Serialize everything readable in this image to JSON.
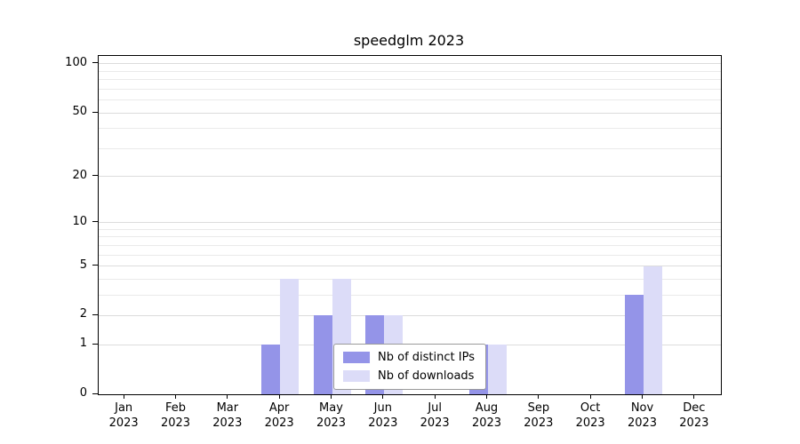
{
  "title": "speedglm 2023",
  "axes": {
    "x_months": [
      "Jan",
      "Feb",
      "Mar",
      "Apr",
      "May",
      "Jun",
      "Jul",
      "Aug",
      "Sep",
      "Oct",
      "Nov",
      "Dec"
    ],
    "x_year": "2023",
    "y_tick_values": [
      0,
      1,
      2,
      5,
      10,
      20,
      50,
      100
    ]
  },
  "legend": {
    "items": [
      {
        "label": "Nb of distinct IPs",
        "color": "#9494e8"
      },
      {
        "label": "Nb of downloads",
        "color": "#dcdcf8"
      }
    ]
  },
  "chart_data": {
    "type": "bar",
    "title": "speedglm 2023",
    "categories": [
      "Jan 2023",
      "Feb 2023",
      "Mar 2023",
      "Apr 2023",
      "May 2023",
      "Jun 2023",
      "Jul 2023",
      "Aug 2023",
      "Sep 2023",
      "Oct 2023",
      "Nov 2023",
      "Dec 2023"
    ],
    "series": [
      {
        "name": "Nb of distinct IPs",
        "color": "#9494e8",
        "values": [
          0,
          0,
          0,
          1,
          2,
          2,
          0,
          1,
          0,
          0,
          3,
          0
        ]
      },
      {
        "name": "Nb of downloads",
        "color": "#dcdcf8",
        "values": [
          0,
          0,
          0,
          4,
          4,
          2,
          0,
          1,
          0,
          0,
          5,
          0
        ]
      }
    ],
    "xlabel": "",
    "ylabel": "",
    "yscale": "log1p",
    "yticks": [
      0,
      1,
      2,
      5,
      10,
      20,
      50,
      100
    ],
    "minor_gridlines": [
      1,
      2,
      3,
      4,
      5,
      6,
      7,
      8,
      9,
      10,
      20,
      30,
      40,
      50,
      60,
      70,
      80,
      90,
      100
    ],
    "grid": true,
    "legend_position": "lower center"
  }
}
